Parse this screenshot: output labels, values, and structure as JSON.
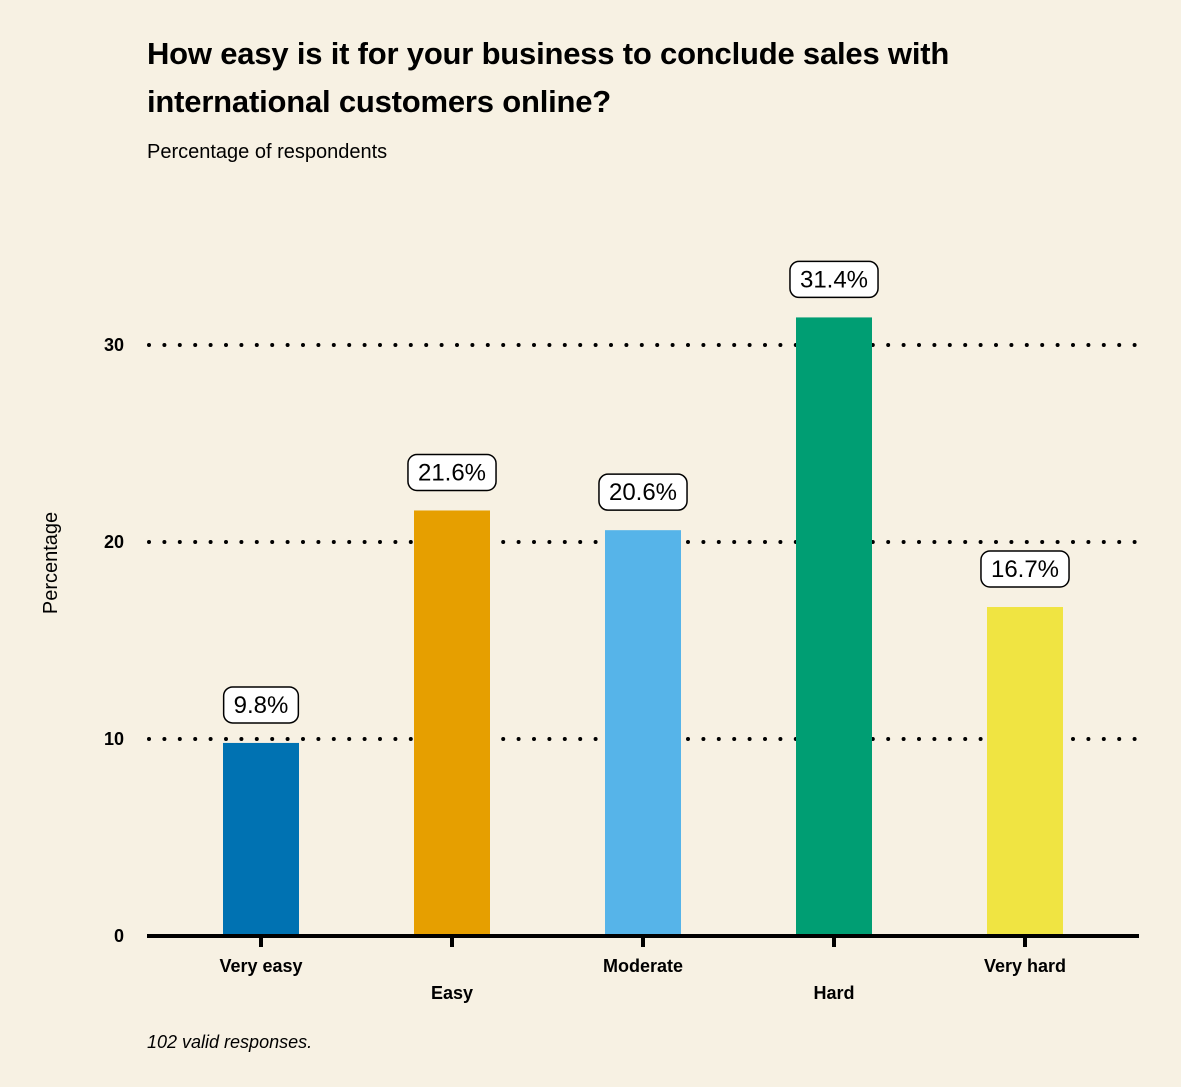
{
  "chart_data": {
    "type": "bar",
    "title": "How easy is it for your business to conclude sales with international customers online?",
    "subtitle": "Percentage of respondents",
    "ylabel": "Percentage",
    "xlabel": "",
    "categories": [
      "Very easy",
      "Easy",
      "Moderate",
      "Hard",
      "Very hard"
    ],
    "values": [
      9.8,
      21.6,
      20.6,
      31.4,
      16.7
    ],
    "data_labels": [
      "9.8%",
      "21.6%",
      "20.6%",
      "31.4%",
      "16.7%"
    ],
    "colors": [
      "#0072b2",
      "#e69f00",
      "#56b4e9",
      "#009e73",
      "#f0e442"
    ],
    "ylim": [
      0,
      35
    ],
    "yticks": [
      0,
      10,
      20,
      30
    ],
    "grid": "dotted horizontal",
    "legend": "none",
    "footnote": "102 valid responses."
  }
}
